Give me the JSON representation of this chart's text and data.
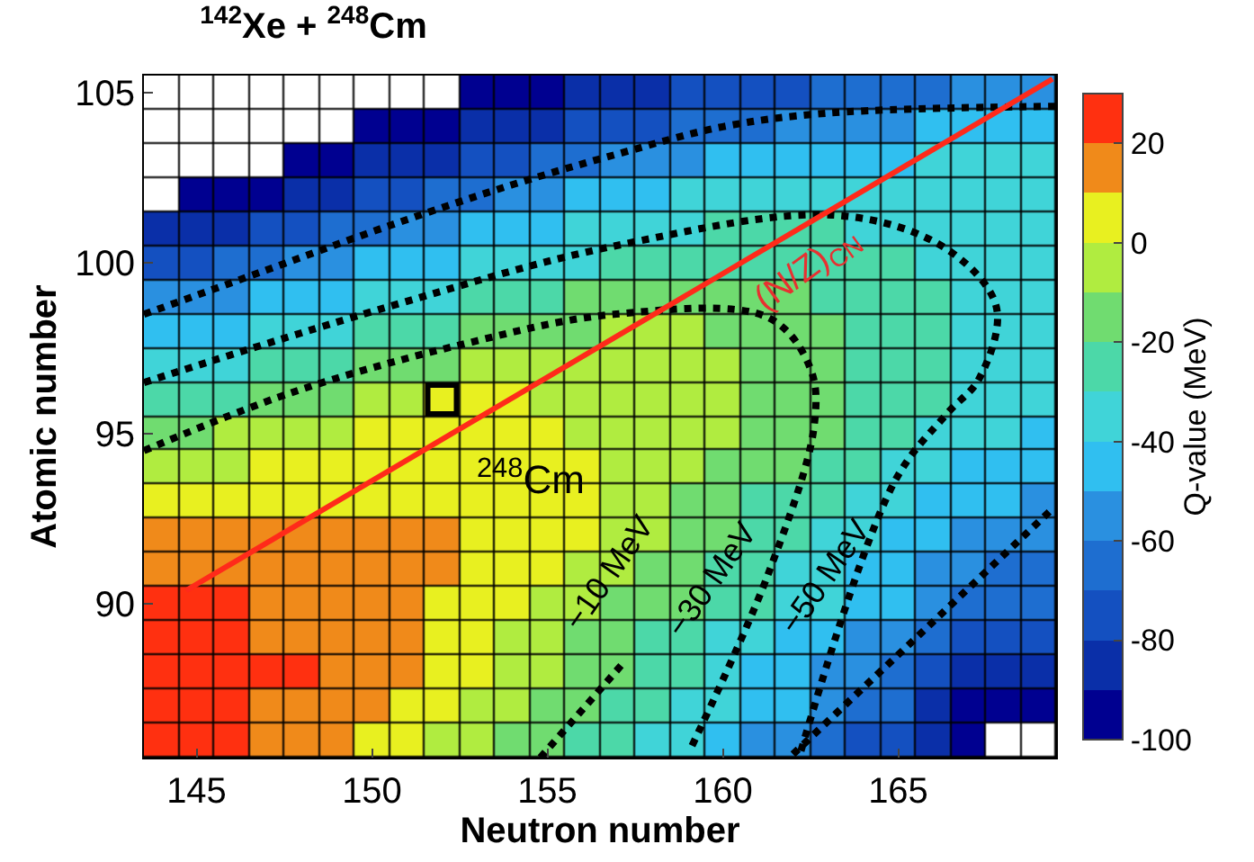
{
  "chart_data": {
    "type": "heatmap",
    "title": "$^{142}$Xe + $^{248}$Cm",
    "xlabel": "Neutron number",
    "ylabel": "Atomic number",
    "clabel": "Q-value (MeV)",
    "x": [
      144,
      145,
      146,
      147,
      148,
      149,
      150,
      151,
      152,
      153,
      154,
      155,
      156,
      157,
      158,
      159,
      160,
      161,
      162,
      163,
      164,
      165,
      166,
      167,
      168,
      169
    ],
    "cells": [
      [
        null,
        null,
        null,
        null,
        null,
        null,
        null,
        null,
        null,
        -95,
        -95,
        -95,
        -85,
        -85,
        -85,
        -75,
        -75,
        -75,
        -75,
        -65,
        -65,
        -65,
        -65,
        -55,
        -55,
        -55
      ],
      [
        null,
        null,
        null,
        null,
        null,
        null,
        -95,
        -95,
        -95,
        -85,
        -85,
        -85,
        -75,
        -75,
        -75,
        -65,
        -65,
        -65,
        -55,
        -55,
        -55,
        -55,
        -45,
        -45,
        -45,
        -45
      ],
      [
        null,
        null,
        null,
        null,
        -95,
        -95,
        -85,
        -85,
        -85,
        -75,
        -75,
        -65,
        -65,
        -55,
        -55,
        -55,
        -45,
        -45,
        -45,
        -45,
        -45,
        -45,
        -35,
        -35,
        -35,
        -35
      ],
      [
        null,
        -95,
        -95,
        -95,
        -85,
        -85,
        -75,
        -75,
        -65,
        -65,
        -55,
        -55,
        -45,
        -45,
        -45,
        -35,
        -35,
        -35,
        -35,
        -35,
        -35,
        -35,
        -35,
        -35,
        -35,
        -35
      ],
      [
        -85,
        -85,
        -85,
        -75,
        -75,
        -65,
        -65,
        -55,
        -55,
        -45,
        -45,
        -45,
        -35,
        -35,
        -35,
        -35,
        -25,
        -25,
        -25,
        -25,
        -35,
        -35,
        -35,
        -35,
        -35,
        -35
      ],
      [
        -75,
        -75,
        -65,
        -65,
        -55,
        -55,
        -45,
        -45,
        -45,
        -35,
        -35,
        -35,
        -35,
        -25,
        -25,
        -25,
        -25,
        -25,
        -25,
        -25,
        -25,
        -25,
        -35,
        -35,
        -35,
        -35
      ],
      [
        -55,
        -55,
        -55,
        -45,
        -45,
        -45,
        -35,
        -35,
        -35,
        -25,
        -25,
        -25,
        -15,
        -15,
        -15,
        -15,
        -15,
        -15,
        -15,
        -25,
        -25,
        -25,
        -25,
        -35,
        -35,
        -35
      ],
      [
        -45,
        -45,
        -45,
        -35,
        -35,
        -35,
        -25,
        -25,
        -25,
        -15,
        -15,
        -15,
        -15,
        -5,
        -5,
        -5,
        -15,
        -15,
        -15,
        -15,
        -25,
        -25,
        -25,
        -35,
        -35,
        -35
      ],
      [
        -35,
        -35,
        -35,
        -25,
        -25,
        -25,
        -15,
        -15,
        -15,
        -5,
        -5,
        -5,
        -5,
        -5,
        -5,
        -5,
        -5,
        -15,
        -15,
        -15,
        -25,
        -25,
        -25,
        -35,
        -35,
        -35
      ],
      [
        -25,
        -25,
        -25,
        -15,
        -15,
        -15,
        -5,
        -5,
        5,
        5,
        5,
        -5,
        -5,
        -5,
        -5,
        -5,
        -5,
        -15,
        -15,
        -15,
        -25,
        -25,
        -25,
        -35,
        -35,
        -35
      ],
      [
        -15,
        -15,
        -5,
        -5,
        -5,
        -5,
        5,
        5,
        5,
        5,
        5,
        5,
        -5,
        -5,
        -5,
        -5,
        -5,
        -15,
        -15,
        -15,
        -25,
        -25,
        -35,
        -35,
        -35,
        -45
      ],
      [
        -5,
        -5,
        -5,
        5,
        5,
        5,
        5,
        5,
        5,
        5,
        5,
        5,
        5,
        -5,
        -5,
        -5,
        -15,
        -15,
        -15,
        -25,
        -25,
        -35,
        -35,
        -45,
        -45,
        -45
      ],
      [
        5,
        5,
        5,
        5,
        5,
        5,
        5,
        5,
        5,
        5,
        5,
        5,
        5,
        -5,
        -5,
        -15,
        -15,
        -25,
        -25,
        -25,
        -35,
        -35,
        -45,
        -45,
        -45,
        -55
      ],
      [
        15,
        15,
        15,
        15,
        15,
        15,
        15,
        15,
        15,
        5,
        5,
        5,
        5,
        -5,
        -5,
        -15,
        -15,
        -25,
        -25,
        -35,
        -35,
        -45,
        -45,
        -55,
        -55,
        -55
      ],
      [
        15,
        15,
        15,
        15,
        15,
        15,
        15,
        15,
        15,
        5,
        5,
        5,
        -5,
        -5,
        -15,
        -15,
        -25,
        -25,
        -35,
        -35,
        -45,
        -45,
        -55,
        -55,
        -65,
        -65
      ],
      [
        25,
        25,
        25,
        15,
        15,
        15,
        15,
        15,
        5,
        5,
        5,
        -5,
        -5,
        -15,
        -15,
        -15,
        -25,
        -25,
        -35,
        -35,
        -45,
        -45,
        -55,
        -65,
        -65,
        -65
      ],
      [
        25,
        25,
        25,
        15,
        15,
        15,
        15,
        15,
        5,
        5,
        -5,
        -5,
        -15,
        -15,
        -25,
        -25,
        -35,
        -35,
        -45,
        -45,
        -55,
        -55,
        -65,
        -75,
        -75,
        -75
      ],
      [
        25,
        25,
        25,
        25,
        25,
        15,
        15,
        15,
        5,
        5,
        -5,
        -5,
        -15,
        -15,
        -25,
        -25,
        -35,
        -45,
        -45,
        -55,
        -55,
        -65,
        -75,
        -85,
        -85,
        -85
      ],
      [
        25,
        25,
        25,
        15,
        15,
        15,
        15,
        5,
        5,
        -5,
        -5,
        -15,
        -15,
        -25,
        -25,
        -35,
        -35,
        -45,
        -45,
        -55,
        -65,
        -65,
        -85,
        -95,
        -95,
        -95
      ],
      [
        25,
        25,
        25,
        15,
        15,
        15,
        5,
        5,
        -5,
        -5,
        -15,
        -15,
        -25,
        -25,
        -35,
        -35,
        -45,
        -55,
        -55,
        -65,
        -75,
        -75,
        -85,
        -95,
        null,
        null
      ]
    ],
    "clim": [
      -100,
      30
    ],
    "cticks": [
      -100,
      -80,
      -60,
      -40,
      -20,
      0,
      20
    ],
    "xlim": [
      143.5,
      169.5
    ],
    "xticks": [
      145,
      150,
      155,
      160,
      165
    ],
    "ylim": [
      85.5,
      105.5
    ],
    "yticks": [
      90,
      95,
      100,
      105
    ],
    "series": [
      {
        "type": "line",
        "color": "#000000",
        "line_style": "dotted",
        "x": [
          143.5,
          147,
          150.5,
          154,
          157,
          160,
          163,
          169.5
        ],
        "values": [
          98.5,
          99.8,
          101.1,
          102.3,
          103.2,
          104.0,
          104.4,
          104.6
        ]
      },
      {
        "type": "line",
        "color": "#000000",
        "line_style": "dotted",
        "x": [
          143.5,
          150.4,
          156.9,
          163.3,
          166.4,
          167.8,
          167.3,
          166.4,
          164.9,
          162.2
        ],
        "values": [
          96.5,
          98.7,
          100.5,
          101.4,
          100.4,
          98.7,
          96.6,
          95.6,
          93.6,
          85.6
        ]
      },
      {
        "type": "line",
        "color": "#000000",
        "line_style": "dotted",
        "x": [
          143.5,
          147.7,
          152.5,
          156.9,
          161.3,
          162.5,
          162.6,
          161.3,
          159.1
        ],
        "values": [
          94.5,
          96.2,
          97.6,
          98.5,
          98.4,
          96.9,
          95.2,
          90.9,
          85.8
        ]
      },
      {
        "type": "line",
        "color": "#000000",
        "line_style": "dotted",
        "x": [
          154.8,
          157.1
        ],
        "values": [
          85.5,
          88.2
        ]
      },
      {
        "type": "line",
        "color": "#000000",
        "line_style": "dotted",
        "x": [
          162.0,
          169.4
        ],
        "values": [
          85.6,
          92.8
        ]
      },
      {
        "type": "line",
        "color": "#ff2a1a",
        "line_style": "solid",
        "x": [
          144.7,
          169.4
        ],
        "values": [
          90.4,
          105.4
        ]
      },
      {
        "type": "scatter",
        "color": "#000000",
        "marker": "square",
        "x": [
          152
        ],
        "values": [
          96
        ]
      }
    ],
    "annotations": [
      "(N/Z)$_{CN}$",
      "$^{248}$Cm",
      "−10 MeV",
      "−30 MeV",
      "−50 MeV"
    ]
  }
}
